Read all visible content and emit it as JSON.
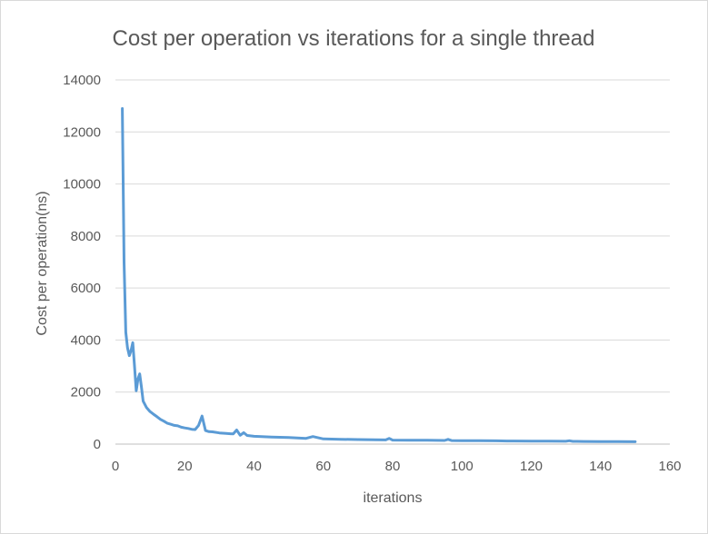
{
  "chart_data": {
    "type": "line",
    "title": "Cost per operation vs iterations for a single thread",
    "xlabel": "iterations",
    "ylabel": "Cost per operation(ns)",
    "xlim": [
      0,
      160
    ],
    "ylim": [
      0,
      14000
    ],
    "xticks": [
      0,
      20,
      40,
      60,
      80,
      100,
      120,
      140,
      160
    ],
    "yticks": [
      0,
      2000,
      4000,
      6000,
      8000,
      10000,
      12000,
      14000
    ],
    "grid": true,
    "legend": "none",
    "colors": {
      "series": "#5b9bd5",
      "text": "#595959"
    },
    "series": [
      {
        "x": [
          2,
          2.5,
          3,
          3.5,
          4,
          4.5,
          5,
          5.5,
          6,
          6.5,
          7,
          7.5,
          8,
          9,
          10,
          11,
          12,
          13,
          14,
          15,
          16,
          17,
          18,
          19,
          20,
          21,
          22,
          23,
          24,
          25,
          26,
          27,
          28,
          30,
          32,
          34,
          35,
          36,
          37,
          38,
          40,
          45,
          50,
          55,
          57,
          60,
          65,
          70,
          75,
          78,
          79,
          80,
          85,
          90,
          95,
          96,
          97,
          100,
          105,
          110,
          113,
          115,
          120,
          122,
          125,
          130,
          131,
          132,
          135,
          140,
          145,
          150
        ],
        "y": [
          12900,
          7000,
          4300,
          3700,
          3400,
          3600,
          3900,
          3000,
          2050,
          2500,
          2700,
          2200,
          1650,
          1400,
          1250,
          1150,
          1050,
          950,
          880,
          800,
          760,
          720,
          700,
          650,
          620,
          600,
          570,
          560,
          720,
          1080,
          520,
          480,
          470,
          430,
          410,
          390,
          540,
          340,
          440,
          330,
          300,
          270,
          250,
          220,
          290,
          200,
          185,
          175,
          165,
          160,
          220,
          155,
          150,
          145,
          140,
          180,
          135,
          130,
          128,
          125,
          120,
          118,
          115,
          112,
          110,
          108,
          130,
          105,
          100,
          98,
          95,
          92
        ]
      }
    ]
  }
}
